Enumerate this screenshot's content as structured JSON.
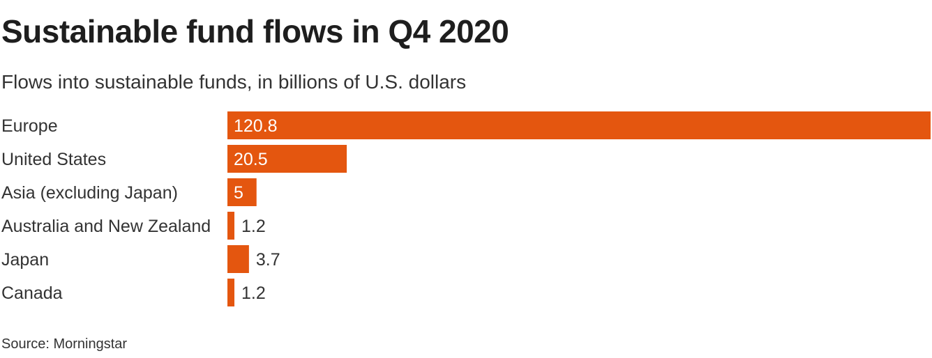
{
  "header": {
    "title": "Sustainable fund flows in Q4 2020",
    "subtitle": "Flows into sustainable funds, in billions of U.S. dollars"
  },
  "footer": {
    "source": "Source: Morningstar"
  },
  "colors": {
    "bar": "#e4560f",
    "label_inside": "#ffffff",
    "label_outside": "#333333",
    "category_text": "#333333"
  },
  "chart_data": {
    "type": "bar",
    "orientation": "horizontal",
    "categories": [
      "Europe",
      "United States",
      "Asia (excluding Japan)",
      "Australia and New Zealand",
      "Japan",
      "Canada"
    ],
    "values": [
      120.8,
      20.5,
      5,
      1.2,
      3.7,
      1.2
    ],
    "value_labels": [
      "120.8",
      "20.5",
      "5",
      "1.2",
      "3.7",
      "1.2"
    ],
    "title": "Sustainable fund flows in Q4 2020",
    "subtitle": "Flows into sustainable funds, in billions of U.S. dollars",
    "xlabel": "",
    "ylabel": "",
    "xlim": [
      0,
      120.8
    ],
    "grid": false,
    "legend": "none"
  }
}
